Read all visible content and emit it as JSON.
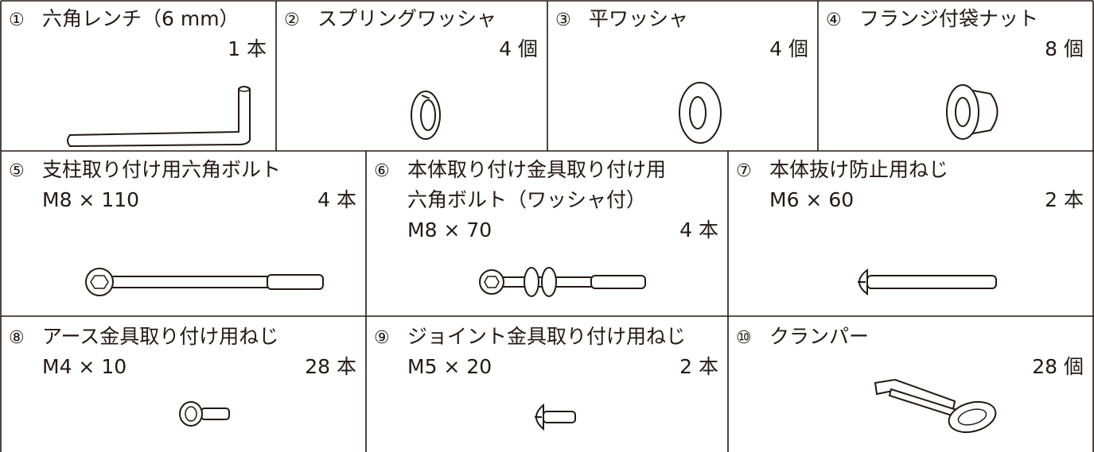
{
  "items": [
    {
      "number": "①",
      "name_lines": [
        "六角レンチ（6 mm）"
      ],
      "quantity": "1 本"
    },
    {
      "number": "②",
      "name_lines": [
        "スプリングワッシャ"
      ],
      "quantity": "4 個"
    },
    {
      "number": "③",
      "name_lines": [
        "平ワッシャ"
      ],
      "quantity": "4 個"
    },
    {
      "number": "④",
      "name_lines": [
        "フランジ付袋ナット"
      ],
      "quantity": "8 個"
    },
    {
      "number": "⑤",
      "name_lines": [
        "支柱取り付け用六角ボルト"
      ],
      "spec": "M8 × 110",
      "quantity": "4 本"
    },
    {
      "number": "⑥",
      "name_lines": [
        "本体取り付け金具取り付け用",
        "六角ボルト（ワッシャ付）"
      ],
      "spec": "M8 × 70",
      "quantity": "4 本"
    },
    {
      "number": "⑦",
      "name_lines": [
        "本体抜け防止用ねじ"
      ],
      "spec": "M6 × 60",
      "quantity": "2 本"
    },
    {
      "number": "⑧",
      "name_lines": [
        "アース金具取り付け用ねじ"
      ],
      "spec": "M4 × 10",
      "quantity": "28 本"
    },
    {
      "number": "⑨",
      "name_lines": [
        "ジョイント金具取り付け用ねじ"
      ],
      "spec": "M5 × 20",
      "quantity": "2 本"
    },
    {
      "number": "⑩",
      "name_lines": [
        "クランパー"
      ],
      "quantity": "28 個"
    }
  ]
}
